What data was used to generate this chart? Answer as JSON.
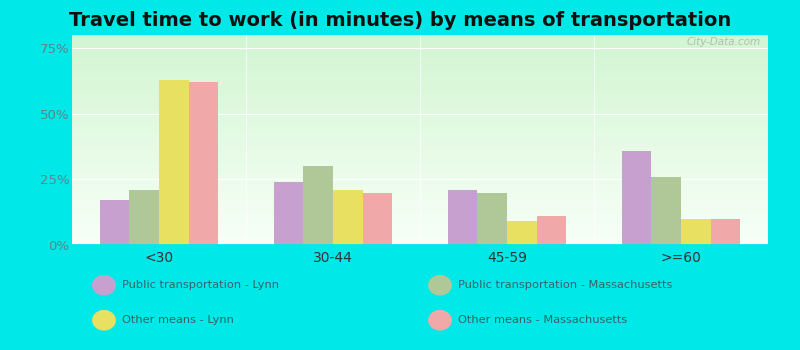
{
  "title": "Travel time to work (in minutes) by means of transportation",
  "categories": [
    "<30",
    "30-44",
    "45-59",
    ">=60"
  ],
  "series": {
    "Public transportation - Lynn": [
      17,
      24,
      21,
      36
    ],
    "Public transportation - Massachusetts": [
      21,
      30,
      20,
      26
    ],
    "Other means - Lynn": [
      63,
      21,
      9,
      10
    ],
    "Other means - Massachusetts": [
      62,
      20,
      11,
      10
    ]
  },
  "colors": {
    "Public transportation - Lynn": "#c8a0d0",
    "Public transportation - Massachusetts": "#b0c898",
    "Other means - Lynn": "#e8e060",
    "Other means - Massachusetts": "#f0a8a8"
  },
  "ylim": [
    0,
    80
  ],
  "yticks": [
    0,
    25,
    50,
    75
  ],
  "ytick_labels": [
    "0%",
    "25%",
    "50%",
    "75%"
  ],
  "background_color": "#00e8e8",
  "title_fontsize": 14,
  "bar_width": 0.17,
  "legend": [
    {
      "label": "Public transportation - Lynn",
      "color": "#c8a0d0"
    },
    {
      "label": "Public transportation - Massachusetts",
      "color": "#b0c898"
    },
    {
      "label": "Other means - Lynn",
      "color": "#e8e060"
    },
    {
      "label": "Other means - Massachusetts",
      "color": "#f0a8a8"
    }
  ],
  "watermark": "City-Data.com"
}
